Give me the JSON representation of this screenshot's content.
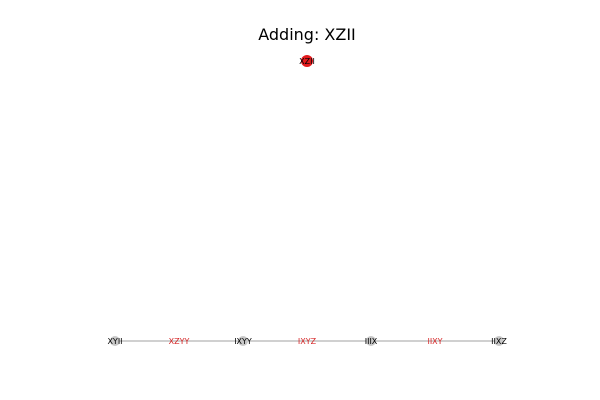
{
  "title": "Adding: XZII",
  "new_node": {
    "label": "XZII",
    "color": "#e31a1c",
    "label_color": "#000000"
  },
  "nodes": [
    {
      "label": "XYII"
    },
    {
      "label": "IXYY"
    },
    {
      "label": "IIIX"
    },
    {
      "label": "IIXZ"
    }
  ],
  "edges": [
    {
      "label": "XZYY"
    },
    {
      "label": "IXYZ"
    },
    {
      "label": "IIXY"
    }
  ],
  "colors": {
    "node_fill": "#c8c8c8",
    "node_label": "#000000",
    "edge_line": "#a0a0a0",
    "edge_label": "#d62728"
  }
}
